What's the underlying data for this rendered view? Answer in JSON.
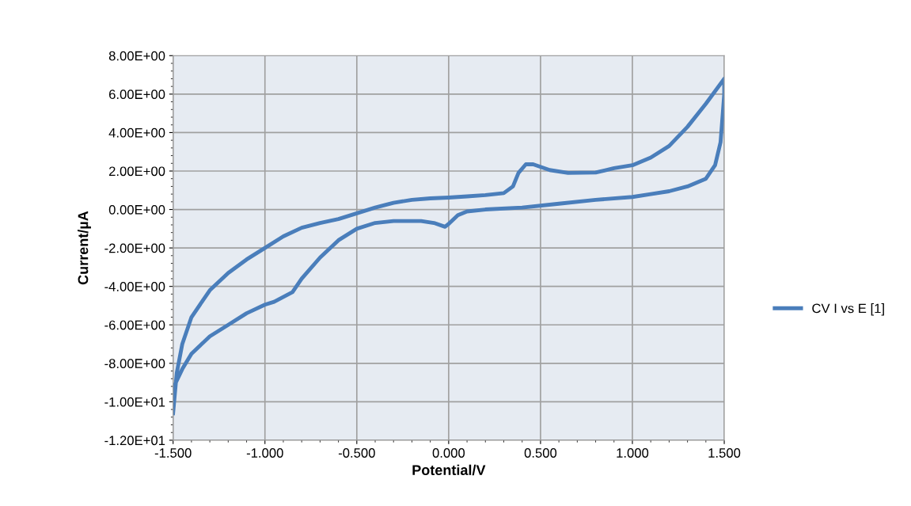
{
  "chart_data": {
    "type": "line",
    "xlabel": "Potential/V",
    "ylabel": "Current/µA",
    "xlim": [
      -1.5,
      1.5
    ],
    "xticks": [
      {
        "value": -1.5,
        "label": "-1.500"
      },
      {
        "value": -1.0,
        "label": "-1.000"
      },
      {
        "value": -0.5,
        "label": "-0.500"
      },
      {
        "value": 0,
        "label": "0.000"
      },
      {
        "value": 0.5,
        "label": "0.500"
      },
      {
        "value": 1.0,
        "label": "1.000"
      },
      {
        "value": 1.5,
        "label": "1.500"
      }
    ],
    "ylim": [
      -12,
      8
    ],
    "yticks": [
      {
        "value": 8,
        "label": "8.00E+00"
      },
      {
        "value": 6,
        "label": "6.00E+00"
      },
      {
        "value": 4,
        "label": "4.00E+00"
      },
      {
        "value": 2,
        "label": "2.00E+00"
      },
      {
        "value": 0,
        "label": "0.00E+00"
      },
      {
        "value": -2,
        "label": "-2.00E+00"
      },
      {
        "value": -4,
        "label": "-4.00E+00"
      },
      {
        "value": -6,
        "label": "-6.00E+00"
      },
      {
        "value": -8,
        "label": "-8.00E+00"
      },
      {
        "value": -10,
        "label": "-1.00E+01"
      },
      {
        "value": -12,
        "label": "-1.20E+01"
      }
    ],
    "grid": true,
    "legend": "right",
    "marker": "none",
    "line_style": "solid",
    "series": [
      {
        "name": "CV I vs E [1]",
        "color": "#4a7ebb",
        "x": [
          -1.5,
          -1.48,
          -1.45,
          -1.4,
          -1.3,
          -1.2,
          -1.1,
          -1.0,
          -0.9,
          -0.8,
          -0.7,
          -0.6,
          -0.5,
          -0.4,
          -0.3,
          -0.2,
          -0.1,
          0.0,
          0.1,
          0.2,
          0.3,
          0.35,
          0.38,
          0.42,
          0.46,
          0.55,
          0.65,
          0.8,
          0.9,
          1.0,
          1.1,
          1.2,
          1.3,
          1.4,
          1.5,
          1.5,
          1.48,
          1.45,
          1.4,
          1.3,
          1.2,
          1.1,
          1.0,
          0.8,
          0.6,
          0.4,
          0.2,
          0.1,
          0.05,
          0.0,
          -0.02,
          -0.08,
          -0.15,
          -0.3,
          -0.4,
          -0.5,
          -0.6,
          -0.7,
          -0.8,
          -0.85,
          -0.95,
          -1.0,
          -1.1,
          -1.2,
          -1.3,
          -1.4,
          -1.45,
          -1.5
        ],
        "values": [
          -10.6,
          -8.5,
          -7.0,
          -5.6,
          -4.2,
          -3.3,
          -2.6,
          -2.0,
          -1.4,
          -0.95,
          -0.7,
          -0.5,
          -0.2,
          0.1,
          0.35,
          0.5,
          0.58,
          0.62,
          0.68,
          0.75,
          0.85,
          1.2,
          1.9,
          2.35,
          2.35,
          2.05,
          1.9,
          1.92,
          2.15,
          2.3,
          2.7,
          3.3,
          4.3,
          5.5,
          6.8,
          6.0,
          3.5,
          2.3,
          1.6,
          1.2,
          0.95,
          0.8,
          0.65,
          0.5,
          0.3,
          0.1,
          0.0,
          -0.1,
          -0.3,
          -0.75,
          -0.9,
          -0.7,
          -0.6,
          -0.6,
          -0.7,
          -1.0,
          -1.6,
          -2.5,
          -3.6,
          -4.3,
          -4.8,
          -4.95,
          -5.4,
          -6.0,
          -6.6,
          -7.5,
          -8.3,
          -9.3
        ]
      }
    ]
  }
}
